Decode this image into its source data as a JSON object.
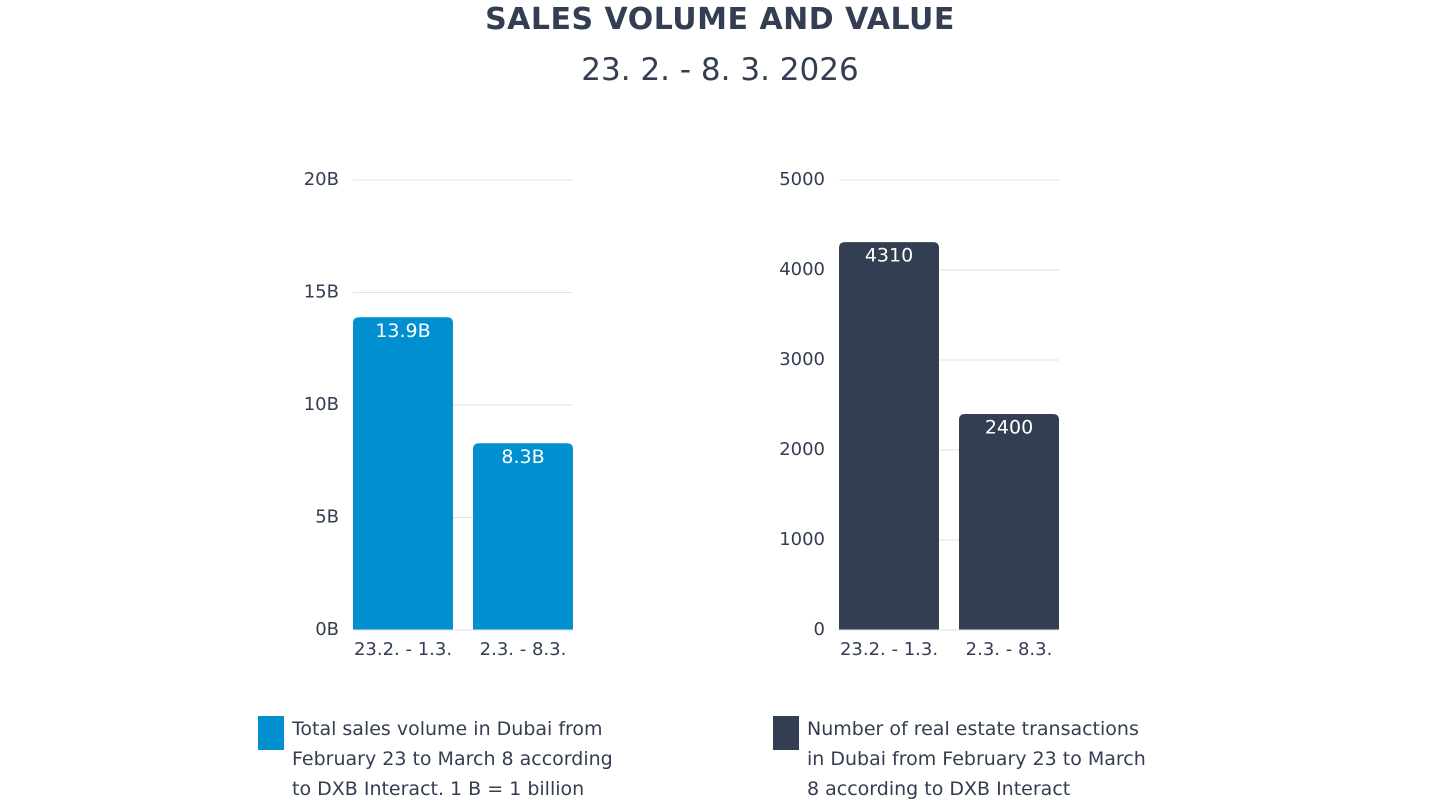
{
  "title": "SALES VOLUME AND VALUE",
  "subtitle": "23. 2. - 8. 3. 2026",
  "colors": {
    "volume": "#0190cf",
    "transactions": "#343e52",
    "grid": "#e2e2e2",
    "axis_text": "#343e52",
    "bar_label": "#ffffff"
  },
  "chart_data": [
    {
      "type": "bar",
      "title": "",
      "xlabel": "",
      "ylabel": "",
      "categories": [
        "23.2. - 1.3.",
        "2.3. - 8.3."
      ],
      "values": [
        13.9,
        8.3
      ],
      "value_labels": [
        "13.9B",
        "8.3B"
      ],
      "ylim": [
        0,
        20
      ],
      "yticks": [
        0,
        5,
        10,
        15,
        20
      ],
      "ytick_labels": [
        "0B",
        "5B",
        "10B",
        "15B",
        "20B"
      ],
      "grid": true,
      "legend": "Total sales volume in Dubai from\nFebruary 23 to March 8 according\nto DXB Interact. 1 B = 1 billion"
    },
    {
      "type": "bar",
      "title": "",
      "xlabel": "",
      "ylabel": "",
      "categories": [
        "23.2. - 1.3.",
        "2.3. - 8.3."
      ],
      "values": [
        4310,
        2400
      ],
      "value_labels": [
        "4310",
        "2400"
      ],
      "ylim": [
        0,
        5000
      ],
      "yticks": [
        0,
        1000,
        2000,
        3000,
        4000,
        5000
      ],
      "ytick_labels": [
        "0",
        "1000",
        "2000",
        "3000",
        "4000",
        "5000"
      ],
      "grid": true,
      "legend": "Number of real estate transactions\nin Dubai from February 23 to March\n8 according to DXB Interact"
    }
  ]
}
